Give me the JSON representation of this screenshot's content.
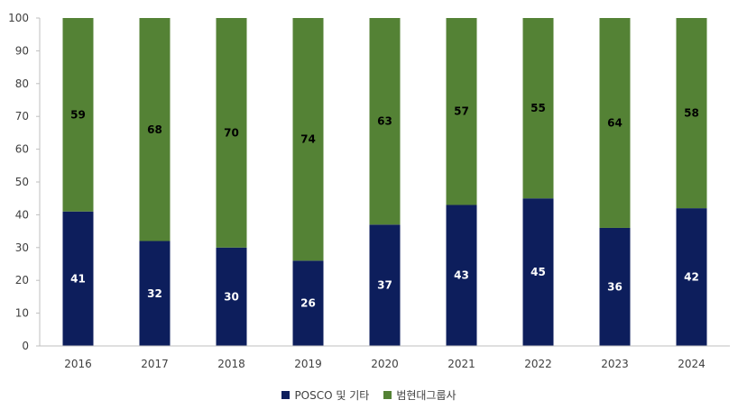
{
  "chart_data": {
    "type": "bar",
    "stacked": true,
    "categories": [
      "2016",
      "2017",
      "2018",
      "2019",
      "2020",
      "2021",
      "2022",
      "2023",
      "2024"
    ],
    "series": [
      {
        "name": "POSCO 및 기타",
        "values": [
          41,
          32,
          30,
          26,
          37,
          43,
          45,
          36,
          42
        ],
        "color": "#0d1e5c",
        "label_color": "#ffffff"
      },
      {
        "name": "범현대그룹사",
        "values": [
          59,
          68,
          70,
          74,
          63,
          57,
          55,
          64,
          58
        ],
        "color": "#548235",
        "label_color": "#000000"
      }
    ],
    "yticks": [
      "0",
      "10",
      "20",
      "30",
      "40",
      "50",
      "60",
      "70",
      "80",
      "90",
      "100"
    ],
    "ylim": [
      0,
      100
    ],
    "grid": false,
    "legend": "bottom"
  }
}
